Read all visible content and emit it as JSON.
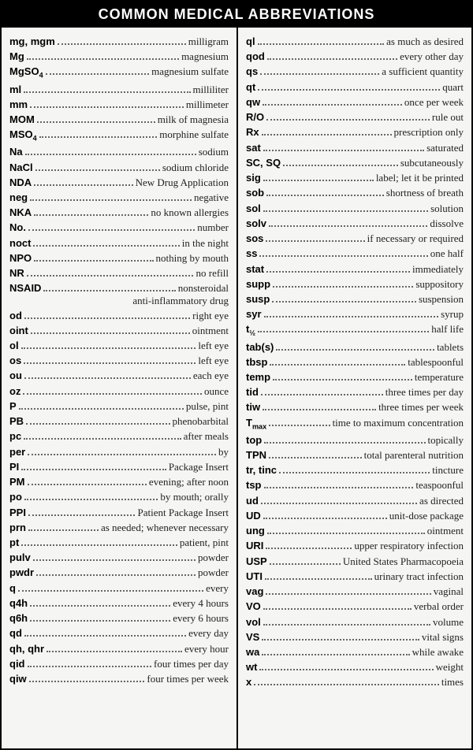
{
  "title": "COMMON MEDICAL ABBREVIATIONS",
  "style": {
    "header_bg": "#000000",
    "header_color": "#ffffff",
    "header_fontsize": 18,
    "column_bg": "#f5f5f3",
    "text_color": "#222222",
    "dot_color": "#666666",
    "border_color": "#000000",
    "abbr_font": "Arial",
    "def_font": "Georgia",
    "entry_fontsize": 13,
    "line_height": 1.48
  },
  "left": [
    {
      "abbr": "mg, mgm",
      "def": "milligram"
    },
    {
      "abbr": "Mg",
      "def": "magnesium"
    },
    {
      "abbr": "MgSO",
      "sub": "4",
      "def": "magnesium sulfate"
    },
    {
      "abbr": "ml",
      "def": "milliliter"
    },
    {
      "abbr": "mm",
      "def": "millimeter"
    },
    {
      "abbr": "MOM",
      "def": "milk of magnesia"
    },
    {
      "abbr": "MSO",
      "sub": "4",
      "def": "morphine sulfate"
    },
    {
      "abbr": "Na",
      "def": "sodium"
    },
    {
      "abbr": "NaCl",
      "def": "sodium chloride"
    },
    {
      "abbr": "NDA",
      "def": "New Drug Application"
    },
    {
      "abbr": "neg",
      "def": "negative"
    },
    {
      "abbr": "NKA",
      "def": "no known allergies"
    },
    {
      "abbr": "No.",
      "def": "number"
    },
    {
      "abbr": "noct",
      "def": "in the night"
    },
    {
      "abbr": "NPO",
      "def": "nothing by mouth"
    },
    {
      "abbr": "NR",
      "def": "no refill"
    },
    {
      "abbr": "NSAID",
      "def": "nonsteroidal",
      "cont": "anti-inflammatory drug"
    },
    {
      "abbr": "od",
      "def": "right eye"
    },
    {
      "abbr": "oint",
      "def": "ointment"
    },
    {
      "abbr": "ol",
      "def": "left eye"
    },
    {
      "abbr": "os",
      "def": "left eye"
    },
    {
      "abbr": "ou",
      "def": "each eye"
    },
    {
      "abbr": "oz",
      "def": "ounce"
    },
    {
      "abbr": "P",
      "def": "pulse, pint"
    },
    {
      "abbr": "PB",
      "def": "phenobarbital"
    },
    {
      "abbr": "pc",
      "def": "after meals"
    },
    {
      "abbr": "per",
      "def": "by"
    },
    {
      "abbr": "PI",
      "def": "Package Insert"
    },
    {
      "abbr": "PM",
      "def": "evening; after noon"
    },
    {
      "abbr": "po",
      "def": "by mouth; orally"
    },
    {
      "abbr": "PPI",
      "def": "Patient Package Insert"
    },
    {
      "abbr": "prn",
      "def": "as needed; whenever necessary"
    },
    {
      "abbr": "pt",
      "def": "patient, pint"
    },
    {
      "abbr": "pulv",
      "def": "powder"
    },
    {
      "abbr": "pwdr",
      "def": "powder"
    },
    {
      "abbr": "q",
      "def": "every"
    },
    {
      "abbr": "q4h",
      "def": "every 4 hours"
    },
    {
      "abbr": "q6h",
      "def": "every 6 hours"
    },
    {
      "abbr": "qd",
      "def": "every day"
    },
    {
      "abbr": "qh, qhr",
      "def": "every hour"
    },
    {
      "abbr": "qid",
      "def": "four times per day"
    },
    {
      "abbr": "qiw",
      "def": "four times per week"
    }
  ],
  "right": [
    {
      "abbr": "ql",
      "def": "as much as desired"
    },
    {
      "abbr": "qod",
      "def": "every other day"
    },
    {
      "abbr": "qs",
      "def": "a sufficient quantity"
    },
    {
      "abbr": "qt",
      "def": "quart"
    },
    {
      "abbr": "qw",
      "def": "once per week"
    },
    {
      "abbr": "R/O",
      "def": "rule out"
    },
    {
      "abbr": "Rx",
      "def": "prescription only"
    },
    {
      "abbr": "sat",
      "def": "saturated"
    },
    {
      "abbr": "SC, SQ",
      "def": "subcutaneously"
    },
    {
      "abbr": "sig",
      "def": "label; let it be printed"
    },
    {
      "abbr": "sob",
      "def": "shortness of breath"
    },
    {
      "abbr": "sol",
      "def": "solution"
    },
    {
      "abbr": "solv",
      "def": "dissolve"
    },
    {
      "abbr": "sos",
      "def": "if necessary or required"
    },
    {
      "abbr": "ss",
      "def": "one half"
    },
    {
      "abbr": "stat",
      "def": "immediately"
    },
    {
      "abbr": "supp",
      "def": "suppository"
    },
    {
      "abbr": "susp",
      "def": "suspension"
    },
    {
      "abbr": "syr",
      "def": "syrup"
    },
    {
      "abbr": "t",
      "sub": "½",
      "def": "half life"
    },
    {
      "abbr": "tab(s)",
      "def": "tablets"
    },
    {
      "abbr": "tbsp",
      "def": "tablespoonful"
    },
    {
      "abbr": "temp",
      "def": "temperature"
    },
    {
      "abbr": "tid",
      "def": "three times per day"
    },
    {
      "abbr": "tiw",
      "def": "three times per week"
    },
    {
      "abbr": "T",
      "sub": "max",
      "def": "time to maximum concentration"
    },
    {
      "abbr": "top",
      "def": "topically"
    },
    {
      "abbr": "TPN",
      "def": "total parenteral nutrition"
    },
    {
      "abbr": "tr, tinc",
      "def": "tincture"
    },
    {
      "abbr": "tsp",
      "def": "teaspoonful"
    },
    {
      "abbr": "ud",
      "def": "as directed"
    },
    {
      "abbr": "UD",
      "def": "unit-dose package"
    },
    {
      "abbr": "ung",
      "def": "ointment"
    },
    {
      "abbr": "URI",
      "def": "upper respiratory infection"
    },
    {
      "abbr": "USP",
      "def": "United States Pharmacopoeia"
    },
    {
      "abbr": "UTI",
      "def": "urinary tract infection"
    },
    {
      "abbr": "vag",
      "def": "vaginal"
    },
    {
      "abbr": "VO",
      "def": "verbal order"
    },
    {
      "abbr": "vol",
      "def": "volume"
    },
    {
      "abbr": "VS",
      "def": "vital signs"
    },
    {
      "abbr": "wa",
      "def": "while awake"
    },
    {
      "abbr": "wt",
      "def": "weight"
    },
    {
      "abbr": "x",
      "def": "times"
    }
  ]
}
